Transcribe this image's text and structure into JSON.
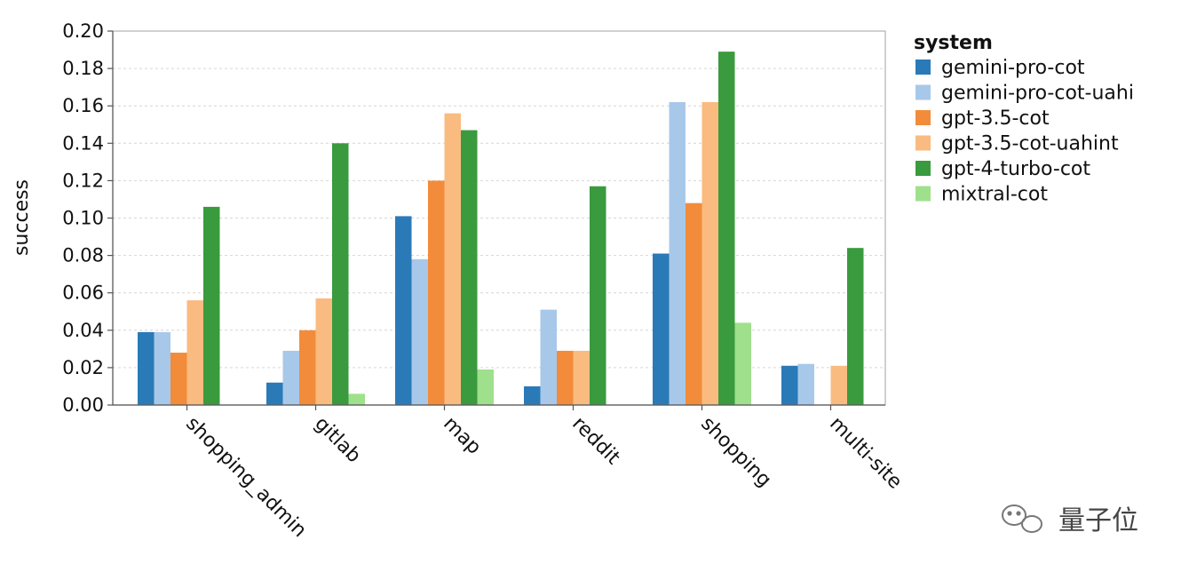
{
  "chart_data": {
    "type": "bar",
    "categories": [
      "shopping_admin",
      "gitlab",
      "map",
      "reddit",
      "shopping",
      "multi-site"
    ],
    "series": [
      {
        "name": "gemini-pro-cot",
        "color": "#2a7ab8",
        "values": [
          0.039,
          0.012,
          0.101,
          0.01,
          0.081,
          0.021
        ]
      },
      {
        "name": "gemini-pro-cot-uahi",
        "color": "#a8c8ea",
        "values": [
          0.039,
          0.029,
          0.078,
          0.051,
          0.162,
          0.022
        ]
      },
      {
        "name": "gpt-3.5-cot",
        "color": "#f28c3a",
        "values": [
          0.028,
          0.04,
          0.12,
          0.029,
          0.108,
          0.0
        ]
      },
      {
        "name": "gpt-3.5-cot-uahint",
        "color": "#f9bb80",
        "values": [
          0.056,
          0.057,
          0.156,
          0.029,
          0.162,
          0.021
        ]
      },
      {
        "name": "gpt-4-turbo-cot",
        "color": "#3a9a3e",
        "values": [
          0.106,
          0.14,
          0.147,
          0.117,
          0.189,
          0.084
        ]
      },
      {
        "name": "mixtral-cot",
        "color": "#9fe08c",
        "values": [
          0.0,
          0.006,
          0.019,
          0.0,
          0.044,
          0.0
        ]
      }
    ],
    "yticks": [
      "0.00",
      "0.02",
      "0.04",
      "0.06",
      "0.08",
      "0.10",
      "0.12",
      "0.14",
      "0.16",
      "0.18",
      "0.20"
    ],
    "ylim": [
      0,
      0.2
    ],
    "xlabel": "",
    "ylabel": "success",
    "legend_title": "system",
    "legend_position": "right",
    "grid": true
  },
  "watermark": {
    "text": "量子位",
    "icon": "wechat-icon"
  }
}
